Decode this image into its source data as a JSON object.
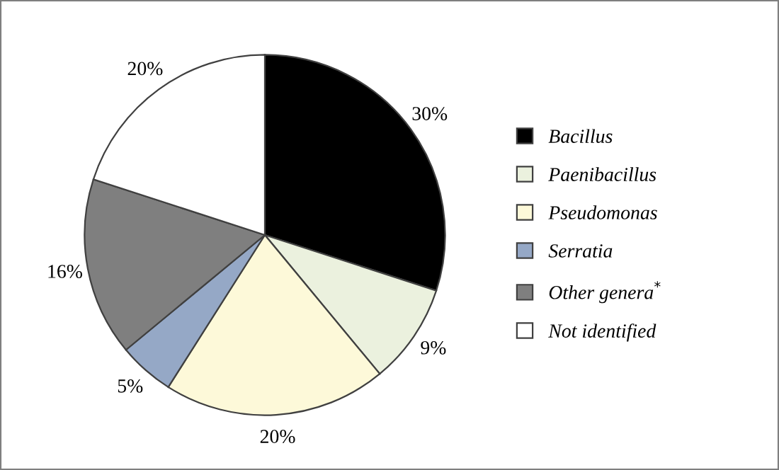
{
  "chart_data": {
    "type": "pie",
    "categories": [
      "Bacillus",
      "Paenibacillus",
      "Pseudomonas",
      "Serratia",
      "Other genera$^{*}$",
      "Not identified"
    ],
    "values": [
      30,
      9,
      20,
      5,
      16,
      20
    ],
    "colors": [
      "#000000",
      "#ebf1de",
      "#fdf9d9",
      "#95a8c6",
      "#7f7f7f",
      "#ffffff"
    ],
    "value_labels": [
      "30%",
      "9%",
      "20%",
      "5%",
      "16%",
      "20%"
    ],
    "legend": "right"
  }
}
